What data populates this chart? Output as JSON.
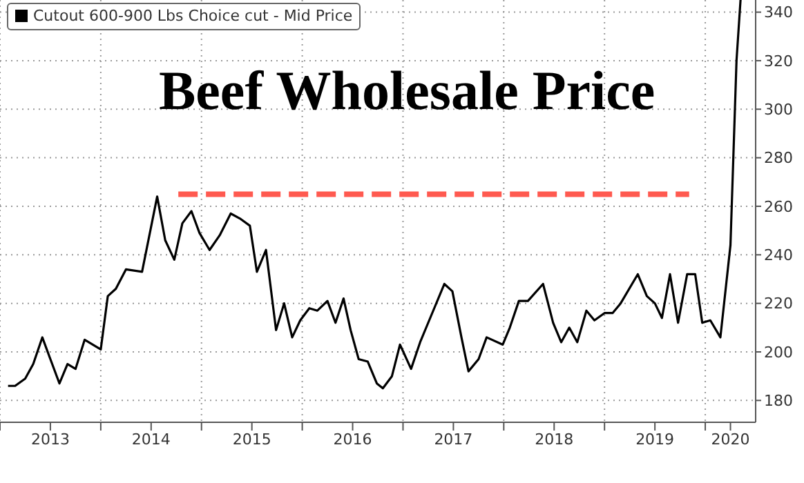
{
  "chart_data": {
    "type": "line",
    "title": "Beef Wholesale Price",
    "legend": "top left",
    "grid": true,
    "line_style": "solid",
    "marker": "none",
    "xlim": [
      2013.0,
      2020.5
    ],
    "ylim": [
      171,
      345
    ],
    "xticks": [
      {
        "value": 2013,
        "label": null
      },
      {
        "value": 2013.5,
        "label": "2013"
      },
      {
        "value": 2014,
        "label": null
      },
      {
        "value": 2014.5,
        "label": "2014"
      },
      {
        "value": 2015,
        "label": null
      },
      {
        "value": 2015.5,
        "label": "2015"
      },
      {
        "value": 2016,
        "label": null
      },
      {
        "value": 2016.5,
        "label": "2016"
      },
      {
        "value": 2017,
        "label": null
      },
      {
        "value": 2017.5,
        "label": "2017"
      },
      {
        "value": 2018,
        "label": null
      },
      {
        "value": 2018.5,
        "label": "2018"
      },
      {
        "value": 2019,
        "label": null
      },
      {
        "value": 2019.5,
        "label": "2019"
      },
      {
        "value": 2020,
        "label": null
      },
      {
        "value": 2020.25,
        "label": "2020"
      }
    ],
    "yticks": [
      180,
      200,
      220,
      240,
      260,
      280,
      300,
      320,
      340
    ],
    "series": [
      {
        "name": "Cutout 600-900 Lbs Choice cut - Mid Price",
        "color": "#000000",
        "x": [
          2013.08,
          2013.15,
          2013.25,
          2013.33,
          2013.42,
          2013.5,
          2013.59,
          2013.67,
          2013.75,
          2013.84,
          2014.0,
          2014.07,
          2014.15,
          2014.25,
          2014.41,
          2014.56,
          2014.64,
          2014.73,
          2014.81,
          2014.9,
          2014.98,
          2015.08,
          2015.18,
          2015.29,
          2015.38,
          2015.48,
          2015.55,
          2015.64,
          2015.74,
          2015.82,
          2015.9,
          2015.98,
          2016.07,
          2016.15,
          2016.25,
          2016.33,
          2016.41,
          2016.48,
          2016.56,
          2016.65,
          2016.74,
          2016.8,
          2016.89,
          2016.97,
          2017.08,
          2017.17,
          2017.27,
          2017.41,
          2017.49,
          2017.58,
          2017.65,
          2017.75,
          2017.83,
          2017.99,
          2018.06,
          2018.15,
          2018.24,
          2018.39,
          2018.49,
          2018.57,
          2018.65,
          2018.73,
          2018.82,
          2018.9,
          2019.0,
          2019.08,
          2019.16,
          2019.33,
          2019.42,
          2019.5,
          2019.57,
          2019.65,
          2019.73,
          2019.82,
          2019.9,
          2019.97,
          2020.05,
          2020.15,
          2020.25,
          2020.31,
          2020.35
        ],
        "values": [
          186,
          186,
          189,
          195,
          206,
          197,
          187,
          195,
          193,
          205,
          201,
          223,
          226,
          234,
          233,
          264,
          246,
          238,
          253,
          258,
          249,
          242,
          248,
          257,
          255,
          252,
          233,
          242,
          209,
          220,
          206,
          213,
          218,
          217,
          221,
          212,
          222,
          209,
          197,
          196,
          187,
          185,
          190,
          203,
          193,
          204,
          214,
          228,
          225,
          206,
          192,
          197,
          206,
          203,
          210,
          221,
          221,
          228,
          212,
          204,
          210,
          204,
          217,
          213,
          216,
          216,
          220,
          232,
          223,
          220,
          214,
          232,
          212,
          232,
          232,
          212,
          213,
          206,
          244,
          320,
          345
        ]
      },
      {
        "color": "#ff5a50",
        "line_style": "dashed",
        "x": [
          2014.77,
          2019.84
        ],
        "values": [
          265,
          265
        ]
      }
    ]
  }
}
